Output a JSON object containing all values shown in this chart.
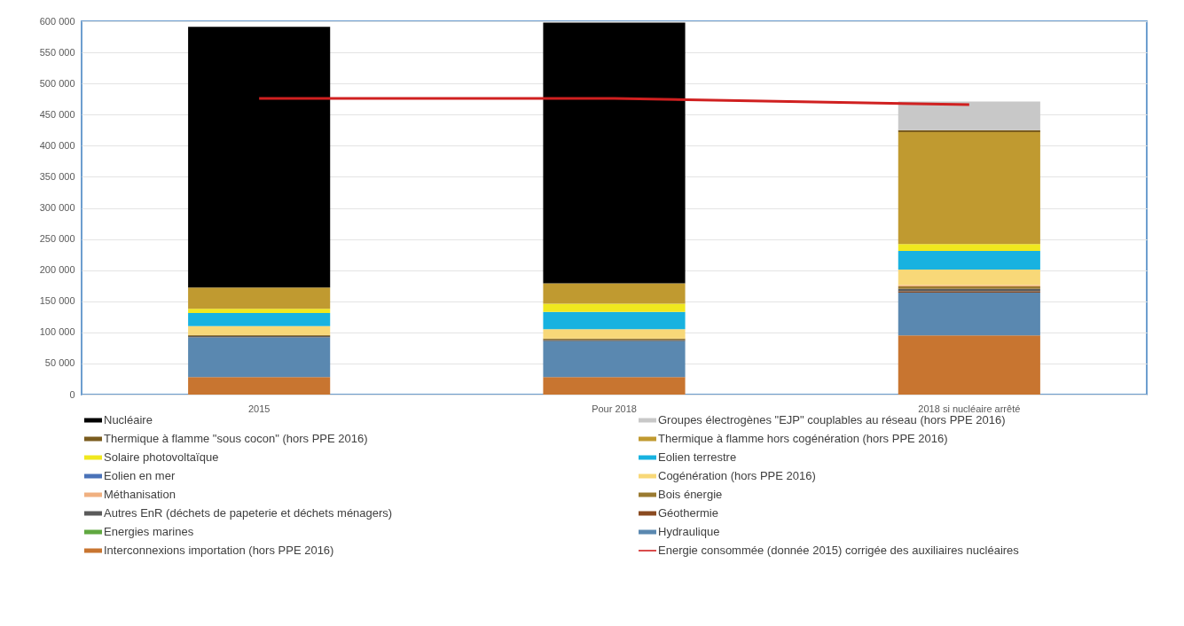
{
  "chart_data": {
    "type": "bar",
    "stacked": true,
    "grid": "y",
    "legend": "bottom",
    "categories": [
      "2015",
      "Pour 2018",
      "2018 si nucléaire arrêté"
    ],
    "ylim": [
      0,
      600000
    ],
    "yticks": [
      {
        "value": 0,
        "label": "0"
      },
      {
        "value": 50000,
        "label": "50 000"
      },
      {
        "value": 100000,
        "label": "100 000"
      },
      {
        "value": 150000,
        "label": "150 000"
      },
      {
        "value": 200000,
        "label": "200 000"
      },
      {
        "value": 250000,
        "label": "250 000"
      },
      {
        "value": 300000,
        "label": "300 000"
      },
      {
        "value": 350000,
        "label": "350 000"
      },
      {
        "value": 400000,
        "label": "400 000"
      },
      {
        "value": 450000,
        "label": "450 000"
      },
      {
        "value": 500000,
        "label": "500 000"
      },
      {
        "value": 550000,
        "label": "550 000"
      },
      {
        "value": 600000,
        "label": "600 000"
      }
    ],
    "series": [
      {
        "name": "Interconnexions importation (hors PPE 2016)",
        "color": "#c87530",
        "values": [
          28000,
          28000,
          95000
        ]
      },
      {
        "name": "Hydraulique",
        "color": "#5a88b0",
        "values": [
          64000,
          58000,
          69000
        ]
      },
      {
        "name": "Energies marines",
        "color": "#60a840",
        "values": [
          0,
          0,
          0
        ]
      },
      {
        "name": "Géothermie",
        "color": "#8a4a20",
        "values": [
          0,
          0,
          2000
        ]
      },
      {
        "name": "Autres EnR (déchets de papeterie et déchets ménagers)",
        "color": "#5a5a5a",
        "values": [
          2000,
          2000,
          4000
        ]
      },
      {
        "name": "Bois énergie",
        "color": "#9a7a30",
        "values": [
          2000,
          2000,
          4000
        ]
      },
      {
        "name": "Méthanisation",
        "color": "#f0b080",
        "values": [
          0,
          0,
          2000
        ]
      },
      {
        "name": "Cogénération (hors PPE 2016)",
        "color": "#f8d878",
        "values": [
          14000,
          15000,
          25000
        ]
      },
      {
        "name": "Eolien en mer",
        "color": "#4a72b8",
        "values": [
          0,
          0,
          0
        ]
      },
      {
        "name": "Eolien terrestre",
        "color": "#18b2e0",
        "values": [
          21000,
          28000,
          30000
        ]
      },
      {
        "name": "Solaire photovoltaïque",
        "color": "#f0e81e",
        "values": [
          7000,
          13000,
          11000
        ]
      },
      {
        "name": "Thermique à flamme hors cogénération (hors PPE 2016)",
        "color": "#c09a30",
        "values": [
          34000,
          33000,
          180000
        ]
      },
      {
        "name": "Thermique à flamme \"sous cocon\" (hors PPE 2016)",
        "color": "#7a5c1e",
        "values": [
          0,
          0,
          3000
        ]
      },
      {
        "name": "Groupes électrogènes \"EJP\" couplables au réseau (hors PPE 2016)",
        "color": "#c8c8c8",
        "values": [
          0,
          0,
          46000
        ]
      },
      {
        "name": "Nucléaire",
        "color": "#000000",
        "values": [
          419000,
          419000,
          0
        ]
      },
      {
        "name": "Energie consommée (donnée 2015) corrigée des auxiliaires nucléaires",
        "type": "line",
        "color": "#d02020",
        "values": [
          476000,
          476000,
          466000
        ]
      }
    ]
  }
}
